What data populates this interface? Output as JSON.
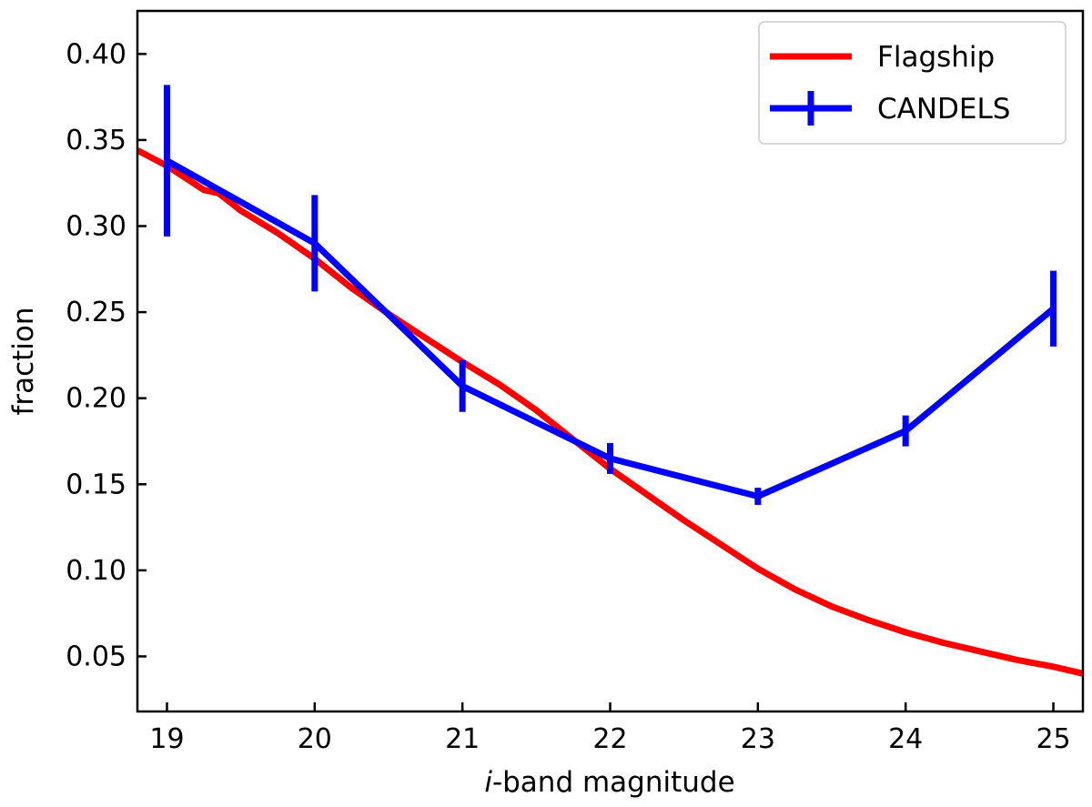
{
  "chart_data": {
    "type": "line",
    "title": "",
    "xlabel_italic": "i",
    "xlabel_rest": "-band magnitude",
    "ylabel": "fraction",
    "xlim": [
      18.8,
      25.2
    ],
    "ylim": [
      0.018,
      0.425
    ],
    "xticks": [
      19,
      20,
      21,
      22,
      23,
      24,
      25
    ],
    "yticks": [
      0.05,
      0.1,
      0.15,
      0.2,
      0.25,
      0.3,
      0.35,
      0.4
    ],
    "ytick_labels": [
      "0.05",
      "0.10",
      "0.15",
      "0.20",
      "0.25",
      "0.30",
      "0.35",
      "0.40"
    ],
    "legend_position": "top-right",
    "series": [
      {
        "name": "Flagship",
        "color": "#ff0000",
        "style": "line",
        "x": [
          18.8,
          19.0,
          19.25,
          19.35,
          19.5,
          19.75,
          20.0,
          20.25,
          20.5,
          20.75,
          21.0,
          21.25,
          21.5,
          21.75,
          22.0,
          22.25,
          22.5,
          22.75,
          23.0,
          23.25,
          23.5,
          23.75,
          24.0,
          24.25,
          24.5,
          24.75,
          25.0,
          25.2
        ],
        "y": [
          0.344,
          0.335,
          0.321,
          0.319,
          0.309,
          0.296,
          0.281,
          0.264,
          0.249,
          0.235,
          0.221,
          0.208,
          0.193,
          0.176,
          0.159,
          0.144,
          0.129,
          0.115,
          0.101,
          0.089,
          0.079,
          0.071,
          0.064,
          0.058,
          0.053,
          0.048,
          0.044,
          0.04
        ]
      },
      {
        "name": "CANDELS",
        "color": "#0000ff",
        "style": "errorbar",
        "x": [
          19,
          20,
          21,
          22,
          23,
          24,
          25
        ],
        "y": [
          0.338,
          0.29,
          0.207,
          0.165,
          0.143,
          0.181,
          0.252
        ],
        "yerr": [
          0.044,
          0.028,
          0.015,
          0.009,
          0.005,
          0.009,
          0.022
        ]
      }
    ]
  }
}
